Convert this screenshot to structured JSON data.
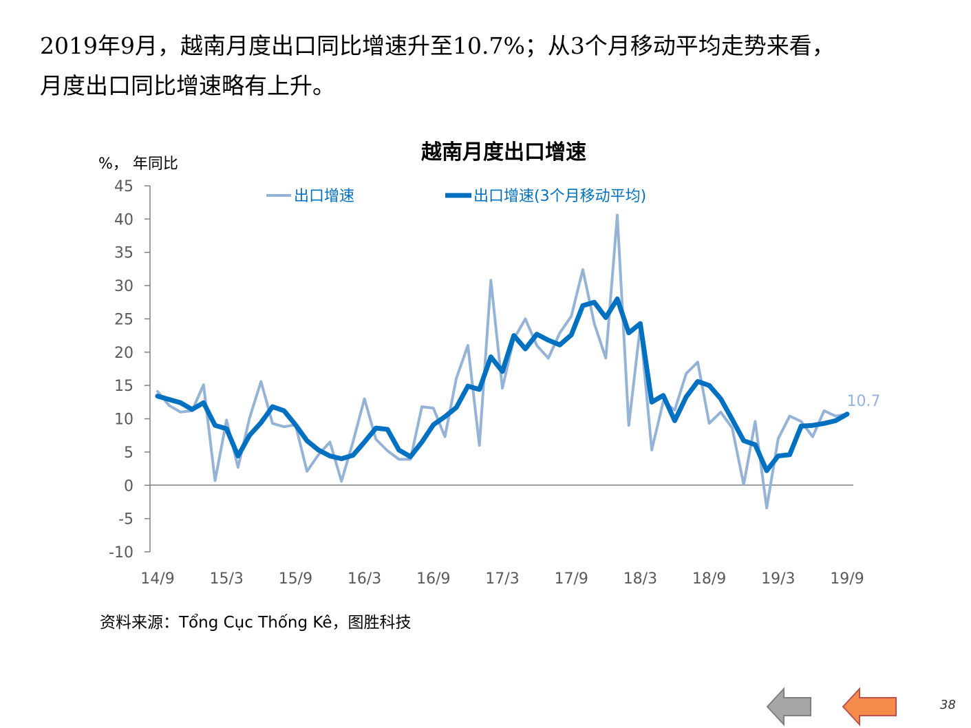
{
  "headline": {
    "line1": "2019年9月，越南月度出口同比增速升至10.7%；从3个月移动平均走势来看，",
    "line2": "月度出口同比增速略有上升。"
  },
  "source_text": "资料来源：Tổng Cục Thống Kê，图胜科技",
  "page_number": "38",
  "colors": {
    "raw_series": "#95B3D7",
    "ma_series": "#0070C0",
    "axis": "#7F7F7F",
    "prev_arrow": "#A6A6A6",
    "next_arrow": "#F58C4B"
  },
  "chart_data": {
    "type": "line",
    "title": "越南月度出口增速",
    "ylabel": "%， 年同比",
    "ylim": [
      -10,
      45
    ],
    "yticks": [
      45,
      40,
      35,
      30,
      25,
      20,
      15,
      10,
      5,
      0,
      -5,
      -10
    ],
    "x_tick_labels": [
      "14/9",
      "15/3",
      "15/9",
      "16/3",
      "16/9",
      "17/3",
      "17/9",
      "18/3",
      "18/9",
      "19/3",
      "19/9"
    ],
    "x_tick_months": [
      0,
      6,
      12,
      18,
      24,
      30,
      36,
      42,
      48,
      54,
      60
    ],
    "legend_placement": "top",
    "end_label": "10.7",
    "series": [
      {
        "name": "出口增速",
        "values": [
          14.1,
          12.0,
          11.0,
          11.2,
          15.1,
          0.7,
          9.8,
          2.7,
          10.1,
          15.6,
          9.3,
          8.8,
          9.1,
          2.1,
          4.6,
          6.5,
          0.6,
          6.5,
          13.0,
          6.9,
          5.2,
          3.9,
          3.9,
          11.8,
          11.6,
          7.3,
          16.1,
          21.0,
          6.0,
          30.8,
          14.6,
          22.0,
          25.0,
          21.0,
          19.1,
          22.9,
          25.4,
          32.4,
          24.3,
          19.1,
          40.6,
          9.0,
          23.9,
          5.3,
          12.6,
          11.3,
          16.8,
          18.5,
          9.3,
          11.0,
          8.6,
          0.1,
          9.6,
          -3.4,
          7.0,
          10.4,
          9.6,
          7.3,
          11.2,
          10.4,
          10.7
        ]
      },
      {
        "name": "出口增速(3个月移动平均)",
        "values": [
          13.4,
          12.9,
          12.4,
          11.4,
          12.4,
          9.0,
          8.5,
          4.4,
          7.5,
          9.4,
          11.8,
          11.2,
          9.1,
          6.7,
          5.3,
          4.4,
          4.0,
          4.5,
          6.5,
          8.6,
          8.4,
          5.3,
          4.3,
          6.5,
          9.1,
          10.3,
          11.7,
          14.9,
          14.4,
          19.3,
          17.1,
          22.5,
          20.5,
          22.7,
          21.8,
          21.1,
          22.6,
          27.0,
          27.5,
          25.2,
          28.0,
          22.9,
          24.3,
          12.5,
          13.5,
          9.7,
          13.3,
          15.6,
          15.0,
          13.0,
          9.9,
          6.7,
          6.1,
          2.2,
          4.4,
          4.6,
          8.9,
          9.0,
          9.3,
          9.7,
          10.7
        ]
      }
    ]
  }
}
